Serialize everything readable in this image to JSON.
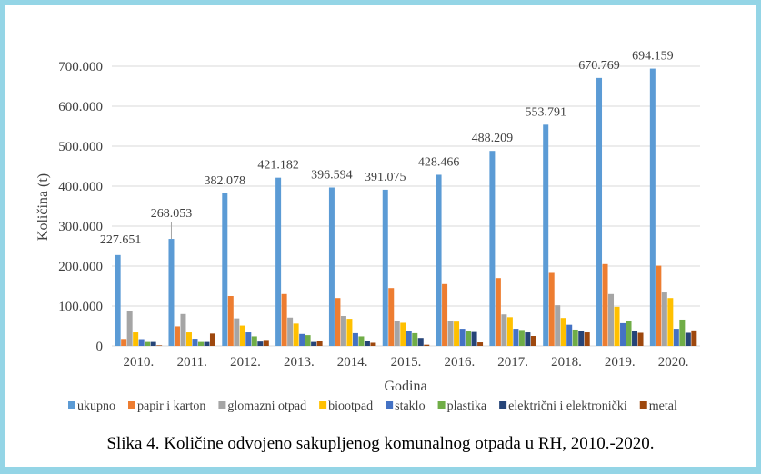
{
  "chart_data": {
    "type": "bar",
    "xlabel": "Godina",
    "ylabel": "Količina (t)",
    "ylim": [
      0,
      700000
    ],
    "yticks": [
      "0",
      "100.000",
      "200.000",
      "300.000",
      "400.000",
      "500.000",
      "600.000",
      "700.000"
    ],
    "grid": true,
    "legend_position": "bottom",
    "categories": [
      "2010.",
      "2011.",
      "2012.",
      "2013.",
      "2014.",
      "2015.",
      "2016.",
      "2017.",
      "2018.",
      "2019.",
      "2020."
    ],
    "series": [
      {
        "name": "ukupno",
        "color": "#5b9bd5",
        "values": [
          227651,
          268053,
          382078,
          421182,
          396594,
          391075,
          428466,
          488209,
          553791,
          670769,
          694159
        ],
        "labels": [
          "227.651",
          "268.053",
          "382.078",
          "421.182",
          "396.594",
          "391.075",
          "428.466",
          "488.209",
          "553.791",
          "670.769",
          "694.159"
        ]
      },
      {
        "name": "papir i karton",
        "color": "#ed7d31",
        "values": [
          17500,
          49000,
          125000,
          130000,
          120000,
          145000,
          155000,
          170000,
          183000,
          205000,
          201000
        ]
      },
      {
        "name": "glomazni otpad",
        "color": "#a5a5a5",
        "values": [
          88000,
          80000,
          69000,
          71000,
          75000,
          63000,
          63000,
          79000,
          102000,
          130000,
          134000
        ]
      },
      {
        "name": "biootpad",
        "color": "#ffc000",
        "values": [
          34000,
          34000,
          51000,
          56000,
          68000,
          58000,
          61000,
          72000,
          70000,
          98000,
          120000
        ]
      },
      {
        "name": "staklo",
        "color": "#4472c4",
        "values": [
          17000,
          18000,
          34000,
          30000,
          32000,
          37000,
          43000,
          43000,
          53000,
          57000,
          43000
        ]
      },
      {
        "name": "plastika",
        "color": "#70ad47",
        "values": [
          10000,
          10000,
          24000,
          27000,
          24000,
          32000,
          38000,
          40000,
          41000,
          63000,
          66000
        ]
      },
      {
        "name": "električni i elektronički",
        "color": "#264478",
        "values": [
          10000,
          10000,
          11000,
          10000,
          13000,
          20000,
          35000,
          34000,
          38000,
          37000,
          33000
        ]
      },
      {
        "name": "metal",
        "color": "#9e480e",
        "values": [
          1500,
          31000,
          15000,
          12000,
          8000,
          3000,
          9000,
          25000,
          34000,
          33000,
          39000
        ]
      }
    ]
  },
  "caption": "Slika 4. Količine odvojeno sakupljenog komunalnog otpada u RH, 2010.-2020."
}
